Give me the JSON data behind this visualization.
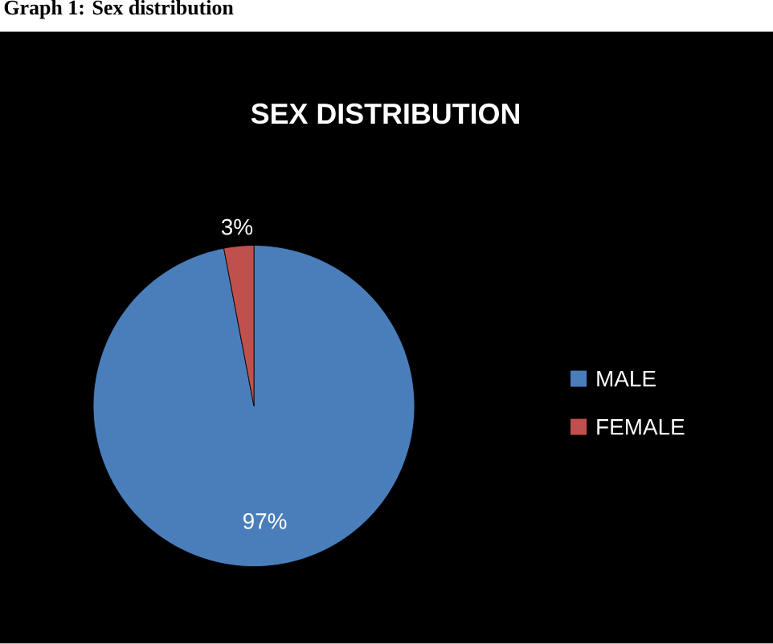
{
  "chart_data": {
    "type": "pie",
    "title": "SEX DISTRIBUTION",
    "annotations": [
      "Graph 1: Sex distribution"
    ],
    "categories": [
      "MALE",
      "FEMALE"
    ],
    "values": [
      97,
      3
    ],
    "colors": [
      "#4a7ebb",
      "#c0504d"
    ],
    "value_labels": [
      "97%",
      "3%"
    ],
    "legend": "right"
  }
}
